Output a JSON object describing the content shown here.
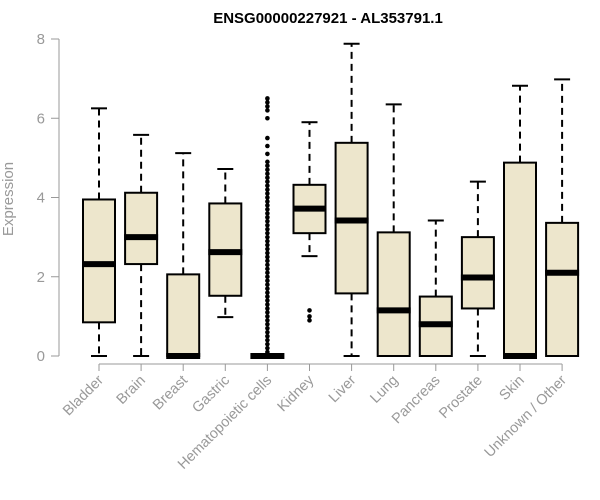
{
  "chart_data": {
    "type": "boxplot",
    "title": "ENSG00000227921 - AL353791.1",
    "xlabel": "",
    "ylabel": "Expression",
    "ylim": [
      0,
      8
    ],
    "yticks": [
      0,
      2,
      4,
      6,
      8
    ],
    "grid": false,
    "legend": "none",
    "colors": {
      "box_fill": "#ede6cc",
      "stroke": "#000000",
      "axis": "#999999",
      "title": "#000000"
    },
    "categories": [
      "Bladder",
      "Brain",
      "Breast",
      "Gastric",
      "Hematopoietic cells",
      "Kidney",
      "Liver",
      "Lung",
      "Pancreas",
      "Prostate",
      "Skin",
      "Unknown / Other"
    ],
    "boxes": [
      {
        "whisker_low": 0,
        "q1": 0.85,
        "median": 2.32,
        "q3": 3.95,
        "whisker_high": 6.25,
        "outliers": []
      },
      {
        "whisker_low": 0,
        "q1": 2.32,
        "median": 3.0,
        "q3": 4.12,
        "whisker_high": 5.58,
        "outliers": []
      },
      {
        "whisker_low": 0,
        "q1": 0,
        "median": 0,
        "q3": 2.06,
        "whisker_high": 5.12,
        "outliers": []
      },
      {
        "whisker_low": 0.98,
        "q1": 1.52,
        "median": 2.62,
        "q3": 3.85,
        "whisker_high": 4.72,
        "outliers": []
      },
      {
        "whisker_low": 0,
        "q1": 0,
        "median": 0,
        "q3": 0,
        "whisker_high": 0,
        "outliers": [
          0.1,
          0.2,
          0.3,
          0.4,
          0.5,
          0.6,
          0.7,
          0.8,
          0.9,
          1.0,
          1.1,
          1.2,
          1.3,
          1.4,
          1.5,
          1.6,
          1.7,
          1.8,
          1.9,
          2.0,
          2.1,
          2.2,
          2.3,
          2.4,
          2.5,
          2.6,
          2.7,
          2.8,
          2.9,
          3.0,
          3.1,
          3.2,
          3.3,
          3.4,
          3.5,
          3.6,
          3.7,
          3.8,
          3.9,
          4.0,
          4.1,
          4.2,
          4.3,
          4.4,
          4.5,
          4.6,
          4.7,
          4.8,
          4.9,
          5.1,
          5.3,
          5.5,
          6.0,
          6.2,
          6.3,
          6.4,
          6.5
        ]
      },
      {
        "whisker_low": 2.52,
        "q1": 3.1,
        "median": 3.72,
        "q3": 4.32,
        "whisker_high": 5.9,
        "outliers": [
          0.9,
          1.0,
          1.15
        ]
      },
      {
        "whisker_low": 0,
        "q1": 1.58,
        "median": 3.42,
        "q3": 5.38,
        "whisker_high": 7.88,
        "outliers": []
      },
      {
        "whisker_low": 0,
        "q1": 0,
        "median": 1.15,
        "q3": 3.12,
        "whisker_high": 6.35,
        "outliers": []
      },
      {
        "whisker_low": 0,
        "q1": 0,
        "median": 0.8,
        "q3": 1.5,
        "whisker_high": 3.42,
        "outliers": []
      },
      {
        "whisker_low": 0,
        "q1": 1.2,
        "median": 1.98,
        "q3": 3.0,
        "whisker_high": 4.4,
        "outliers": []
      },
      {
        "whisker_low": 0,
        "q1": 0,
        "median": 0,
        "q3": 4.88,
        "whisker_high": 6.82,
        "outliers": []
      },
      {
        "whisker_low": 0,
        "q1": 0,
        "median": 2.1,
        "q3": 3.36,
        "whisker_high": 6.98,
        "outliers": []
      }
    ]
  }
}
